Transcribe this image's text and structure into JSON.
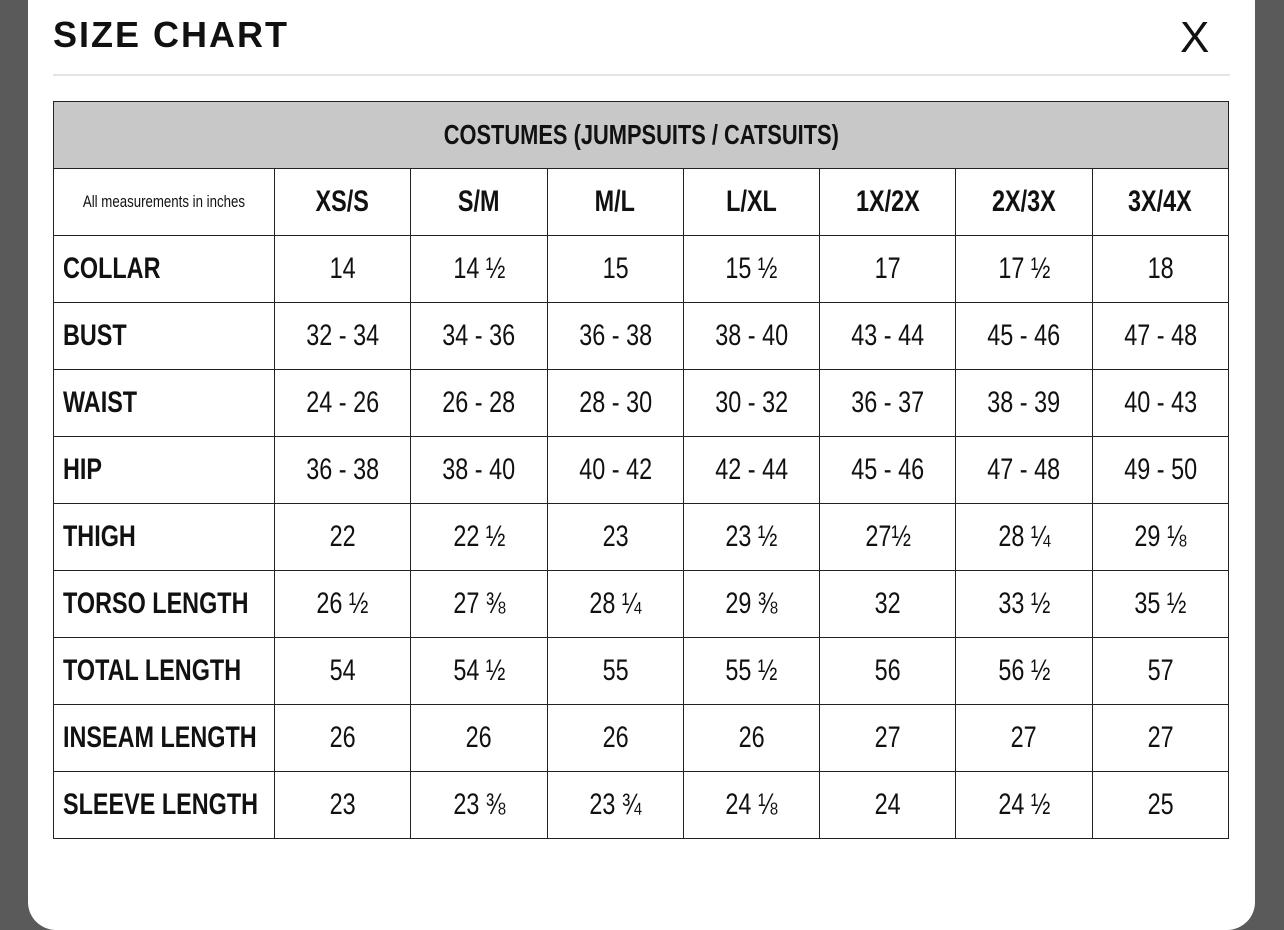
{
  "header": {
    "title": "SIZE CHART",
    "close": "X"
  },
  "table": {
    "caption": "COSTUMES (JUMPSUITS / CATSUITS)",
    "columns": [
      "All measurements in inches",
      "XS/S",
      "S/M",
      "M/L",
      "L/XL",
      "1X/2X",
      "2X/3X",
      "3X/4X"
    ],
    "rows": [
      [
        "COLLAR",
        "14",
        "14 ½",
        "15",
        "15 ½",
        "17",
        "17 ½",
        "18"
      ],
      [
        "BUST",
        "32 - 34",
        "34 - 36",
        "36 - 38",
        "38 - 40",
        "43 - 44",
        "45 - 46",
        "47 - 48"
      ],
      [
        "WAIST",
        "24 - 26",
        "26 - 28",
        "28 - 30",
        "30 - 32",
        "36 - 37",
        "38 - 39",
        "40 - 43"
      ],
      [
        "HIP",
        "36 - 38",
        "38 - 40",
        "40 - 42",
        "42 - 44",
        "45 - 46",
        "47 - 48",
        "49 - 50"
      ],
      [
        "THIGH",
        "22",
        "22 ½",
        "23",
        "23 ½",
        "27½",
        "28 ¼",
        "29 ⅛"
      ],
      [
        "TORSO LENGTH",
        "26 ½",
        "27 ⅜",
        "28 ¼",
        "29 ⅜",
        "32",
        "33 ½",
        "35 ½"
      ],
      [
        "TOTAL LENGTH",
        "54",
        "54 ½",
        "55",
        "55 ½",
        "56",
        "56 ½",
        "57"
      ],
      [
        "INSEAM LENGTH",
        "26",
        "26",
        "26",
        "26",
        "27",
        "27",
        "27"
      ],
      [
        "SLEEVE LENGTH",
        "23",
        "23 ⅜",
        "23 ¾",
        "24 ⅛",
        "24",
        "24 ½",
        "25"
      ]
    ]
  }
}
